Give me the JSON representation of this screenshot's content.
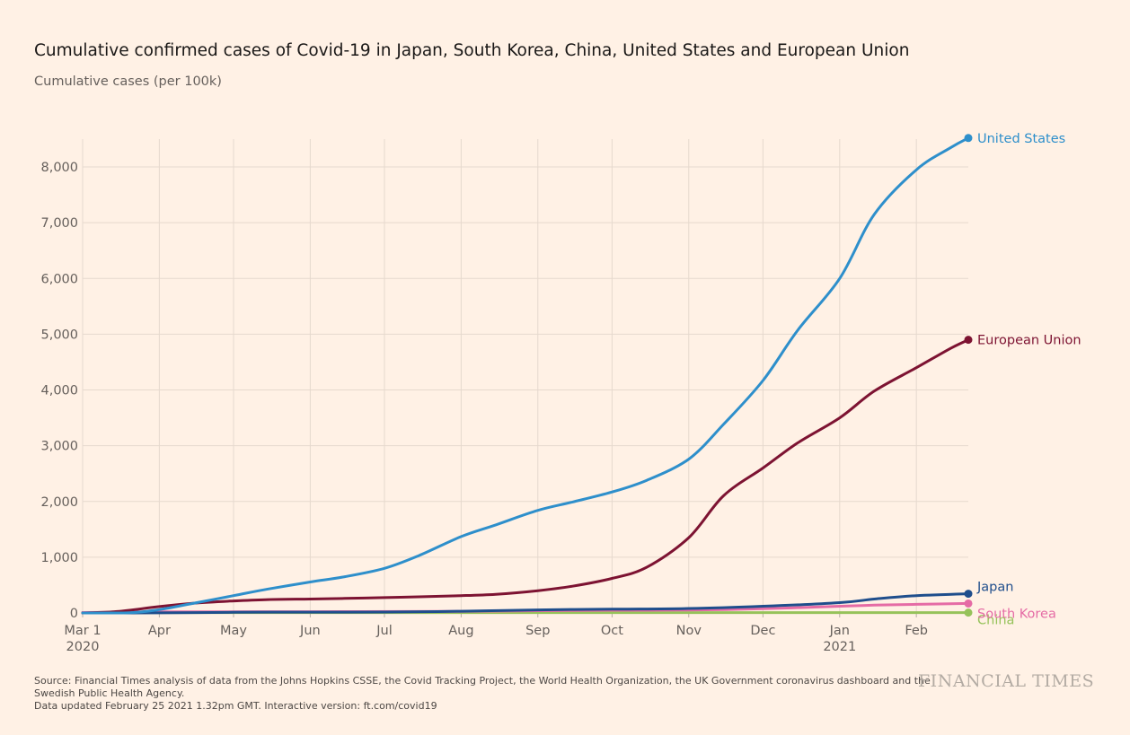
{
  "title": "Cumulative confirmed cases of Covid-19 in Japan, South Korea, China, United States and European Union",
  "subtitle": "Cumulative cases (per 100k)",
  "source_lines": [
    "Source: Financial Times analysis of data from the Johns Hopkins CSSE, the Covid Tracking Project, the World Health Organization, the UK Government coronavirus dashboard and the",
    "Swedish Public Health Agency.",
    "Data updated February 25 2021 1.32pm GMT. Interactive version: ft.com/covid19"
  ],
  "brand": "FINANCIAL TIMES",
  "chart_data": {
    "type": "line",
    "title": "Cumulative confirmed cases of Covid-19 in Japan, South Korea, China, United States and European Union",
    "ylabel": "Cumulative cases (per 100k)",
    "xlabel": "",
    "x_range": [
      "2020-03-01",
      "2021-02-22"
    ],
    "ylim": [
      0,
      8500
    ],
    "y_ticks": [
      0,
      1000,
      2000,
      3000,
      4000,
      5000,
      6000,
      7000,
      8000
    ],
    "y_tick_labels": [
      "0",
      "1,000",
      "2,000",
      "3,000",
      "4,000",
      "5,000",
      "6,000",
      "7,000",
      "8,000"
    ],
    "x_ticks": [
      {
        "date": "2020-03-01",
        "label": "Mar 1",
        "sublabel": "2020"
      },
      {
        "date": "2020-04-01",
        "label": "Apr",
        "sublabel": ""
      },
      {
        "date": "2020-05-01",
        "label": "May",
        "sublabel": ""
      },
      {
        "date": "2020-06-01",
        "label": "Jun",
        "sublabel": ""
      },
      {
        "date": "2020-07-01",
        "label": "Jul",
        "sublabel": ""
      },
      {
        "date": "2020-08-01",
        "label": "Aug",
        "sublabel": ""
      },
      {
        "date": "2020-09-01",
        "label": "Sep",
        "sublabel": ""
      },
      {
        "date": "2020-10-01",
        "label": "Oct",
        "sublabel": ""
      },
      {
        "date": "2020-11-01",
        "label": "Nov",
        "sublabel": ""
      },
      {
        "date": "2020-12-01",
        "label": "Dec",
        "sublabel": ""
      },
      {
        "date": "2021-01-01",
        "label": "Jan",
        "sublabel": "2021"
      },
      {
        "date": "2021-02-01",
        "label": "Feb",
        "sublabel": ""
      }
    ],
    "grid": true,
    "legend": "inline labels at line ends (right)",
    "series": [
      {
        "name": "United States",
        "color": "#2e8fcb",
        "points": [
          [
            "2020-03-01",
            0
          ],
          [
            "2020-03-20",
            5
          ],
          [
            "2020-04-01",
            60
          ],
          [
            "2020-04-15",
            175
          ],
          [
            "2020-05-01",
            310
          ],
          [
            "2020-05-15",
            430
          ],
          [
            "2020-06-01",
            555
          ],
          [
            "2020-06-15",
            650
          ],
          [
            "2020-07-01",
            800
          ],
          [
            "2020-07-15",
            1030
          ],
          [
            "2020-08-01",
            1370
          ],
          [
            "2020-08-15",
            1580
          ],
          [
            "2020-09-01",
            1840
          ],
          [
            "2020-09-15",
            1990
          ],
          [
            "2020-10-01",
            2170
          ],
          [
            "2020-10-15",
            2380
          ],
          [
            "2020-11-01",
            2760
          ],
          [
            "2020-11-15",
            3380
          ],
          [
            "2020-12-01",
            4170
          ],
          [
            "2020-12-15",
            5070
          ],
          [
            "2021-01-01",
            6000
          ],
          [
            "2021-01-15",
            7150
          ],
          [
            "2021-02-01",
            7950
          ],
          [
            "2021-02-15",
            8350
          ],
          [
            "2021-02-22",
            8520
          ]
        ]
      },
      {
        "name": "European Union",
        "color": "#7d1332",
        "points": [
          [
            "2020-03-01",
            0
          ],
          [
            "2020-03-15",
            25
          ],
          [
            "2020-04-01",
            115
          ],
          [
            "2020-04-15",
            175
          ],
          [
            "2020-05-01",
            215
          ],
          [
            "2020-05-15",
            240
          ],
          [
            "2020-06-01",
            250
          ],
          [
            "2020-06-15",
            260
          ],
          [
            "2020-07-01",
            275
          ],
          [
            "2020-07-15",
            290
          ],
          [
            "2020-08-01",
            310
          ],
          [
            "2020-08-15",
            335
          ],
          [
            "2020-09-01",
            400
          ],
          [
            "2020-09-15",
            480
          ],
          [
            "2020-10-01",
            620
          ],
          [
            "2020-10-15",
            820
          ],
          [
            "2020-11-01",
            1350
          ],
          [
            "2020-11-15",
            2100
          ],
          [
            "2020-12-01",
            2600
          ],
          [
            "2020-12-15",
            3050
          ],
          [
            "2021-01-01",
            3500
          ],
          [
            "2021-01-15",
            3980
          ],
          [
            "2021-02-01",
            4400
          ],
          [
            "2021-02-15",
            4750
          ],
          [
            "2021-02-22",
            4900
          ]
        ]
      },
      {
        "name": "Japan",
        "color": "#1f4e8c",
        "points": [
          [
            "2020-03-01",
            0
          ],
          [
            "2020-04-01",
            2
          ],
          [
            "2020-05-01",
            12
          ],
          [
            "2020-06-01",
            14
          ],
          [
            "2020-07-01",
            16
          ],
          [
            "2020-08-01",
            30
          ],
          [
            "2020-09-01",
            55
          ],
          [
            "2020-10-01",
            68
          ],
          [
            "2020-11-01",
            80
          ],
          [
            "2020-12-01",
            120
          ],
          [
            "2021-01-01",
            185
          ],
          [
            "2021-01-15",
            250
          ],
          [
            "2021-02-01",
            310
          ],
          [
            "2021-02-22",
            345
          ]
        ]
      },
      {
        "name": "South Korea",
        "color": "#e56ba5",
        "points": [
          [
            "2020-03-01",
            8
          ],
          [
            "2020-04-01",
            20
          ],
          [
            "2020-06-01",
            23
          ],
          [
            "2020-08-01",
            28
          ],
          [
            "2020-09-01",
            40
          ],
          [
            "2020-10-01",
            48
          ],
          [
            "2020-11-01",
            52
          ],
          [
            "2020-12-01",
            75
          ],
          [
            "2021-01-01",
            120
          ],
          [
            "2021-01-15",
            140
          ],
          [
            "2021-02-01",
            155
          ],
          [
            "2021-02-22",
            170
          ]
        ]
      },
      {
        "name": "China",
        "color": "#96c25a",
        "points": [
          [
            "2020-03-01",
            6
          ],
          [
            "2020-04-01",
            6
          ],
          [
            "2020-08-01",
            6
          ],
          [
            "2020-12-01",
            6
          ],
          [
            "2021-02-22",
            6
          ]
        ]
      }
    ]
  }
}
